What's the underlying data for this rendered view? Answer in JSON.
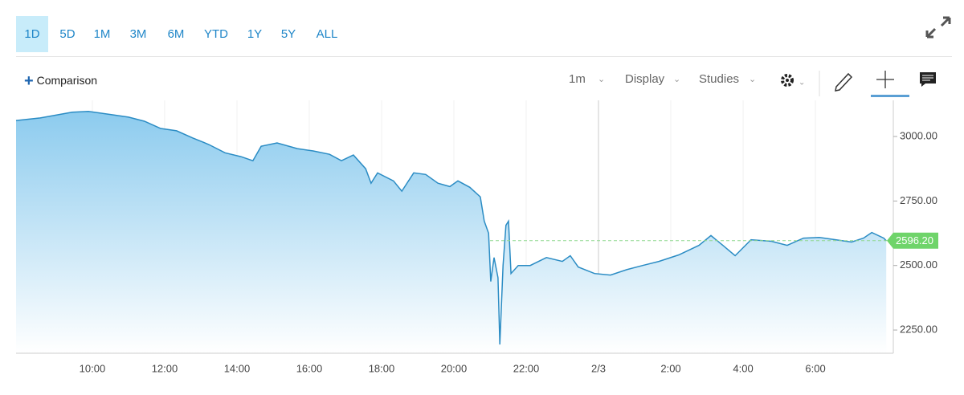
{
  "ranges": [
    "1D",
    "5D",
    "1M",
    "3M",
    "6M",
    "YTD",
    "1Y",
    "5Y",
    "ALL"
  ],
  "selected_range": 0,
  "controls": {
    "comparison": "Comparison",
    "interval": "1m",
    "display": "Display",
    "studies": "Studies"
  },
  "chart_data": {
    "type": "area",
    "x": [
      7.89,
      8.56,
      9.44,
      9.89,
      10.56,
      11,
      11.44,
      11.89,
      12.33,
      12.78,
      13.22,
      13.67,
      14.11,
      14.44,
      14.67,
      15.11,
      15.67,
      16.11,
      16.56,
      16.89,
      17.22,
      17.56,
      17.71,
      17.89,
      18.33,
      18.56,
      18.89,
      19.22,
      19.56,
      19.89,
      20.11,
      20.44,
      20.73,
      20.84,
      20.96,
      21.02,
      21.11,
      21.22,
      21.27,
      21.36,
      21.44,
      21.51,
      21.58,
      21.78,
      22.11,
      22.56,
      23,
      23.22,
      23.44,
      23.89,
      24.33,
      24.78,
      25.22,
      25.67,
      26.22,
      26.78,
      27.11,
      27.44,
      27.78,
      28.22,
      28.78,
      29.22,
      29.67,
      30.11,
      30.56,
      31,
      31.33,
      31.56,
      31.89,
      31.96
    ],
    "values": [
      3062,
      3072,
      3094,
      3097,
      3084,
      3075,
      3059,
      3031,
      3022,
      2994,
      2969,
      2937,
      2922,
      2906,
      2962,
      2975,
      2953,
      2944,
      2931,
      2906,
      2928,
      2875,
      2819,
      2859,
      2828,
      2788,
      2859,
      2853,
      2819,
      2806,
      2828,
      2803,
      2766,
      2672,
      2625,
      2438,
      2531,
      2453,
      2194,
      2500,
      2656,
      2672,
      2469,
      2500,
      2500,
      2531,
      2516,
      2538,
      2494,
      2469,
      2463,
      2484,
      2500,
      2516,
      2541,
      2578,
      2616,
      2578,
      2538,
      2600,
      2594,
      2578,
      2606,
      2609,
      2600,
      2591,
      2606,
      2628,
      2606,
      2596.2
    ],
    "color": "#2b8cc4",
    "xlim": [
      7.89,
      32.11
    ],
    "xticks": [
      {
        "value": 10,
        "label": "10:00"
      },
      {
        "value": 12,
        "label": "12:00"
      },
      {
        "value": 14,
        "label": "14:00"
      },
      {
        "value": 16,
        "label": "16:00"
      },
      {
        "value": 18,
        "label": "18:00"
      },
      {
        "value": 20,
        "label": "20:00"
      },
      {
        "value": 22,
        "label": "22:00"
      },
      {
        "value": 24,
        "label": "2/3"
      },
      {
        "value": 26,
        "label": "2:00"
      },
      {
        "value": 28,
        "label": "4:00"
      },
      {
        "value": 30,
        "label": "6:00"
      }
    ],
    "ylim": [
      2160,
      3140
    ],
    "yticks": [
      {
        "value": 2250,
        "label": "2250.00"
      },
      {
        "value": 2500,
        "label": "2500.00"
      },
      {
        "value": 2750,
        "label": "2750.00"
      },
      {
        "value": 3000,
        "label": "3000.00"
      }
    ],
    "grid": "x",
    "last_value": 2596.2,
    "last_label": "2596.20"
  }
}
